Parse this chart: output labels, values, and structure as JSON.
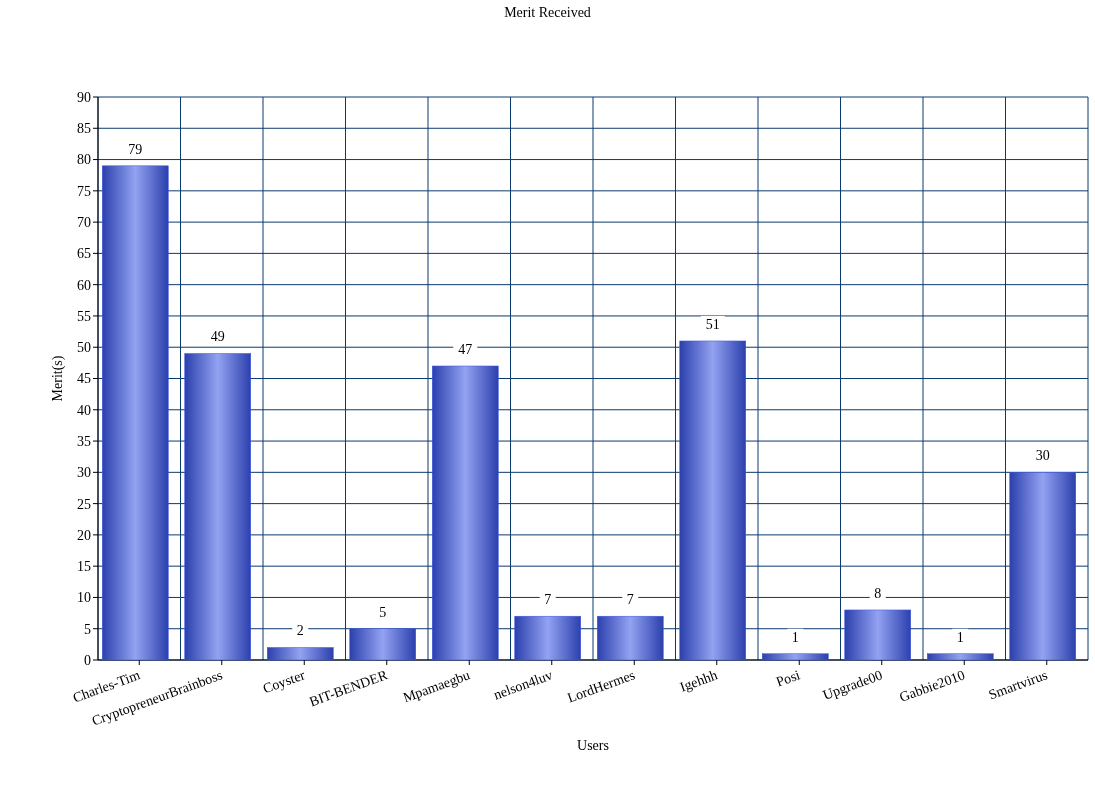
{
  "chart_data": {
    "type": "bar",
    "title": "Merit Received",
    "xlabel": "Users",
    "ylabel": "Merit(s)",
    "categories": [
      "Charles-Tim",
      "CryptopreneurBrainboss",
      "Coyster",
      "BIT-BENDER",
      "Mpamaegbu",
      "nelson4luv",
      "LordHermes",
      "Igehhh",
      "Posi",
      "Upgrade00",
      "Gabbie2010",
      "Smartvirus"
    ],
    "values": [
      79,
      49,
      2,
      5,
      47,
      7,
      7,
      51,
      1,
      8,
      1,
      30
    ],
    "color": "#3a55e6",
    "ylim": [
      0,
      90
    ],
    "yticks": [
      0,
      5,
      10,
      15,
      20,
      25,
      30,
      35,
      40,
      45,
      50,
      55,
      60,
      65,
      70,
      75,
      80,
      85,
      90
    ],
    "grid": true,
    "data_labels": true
  }
}
